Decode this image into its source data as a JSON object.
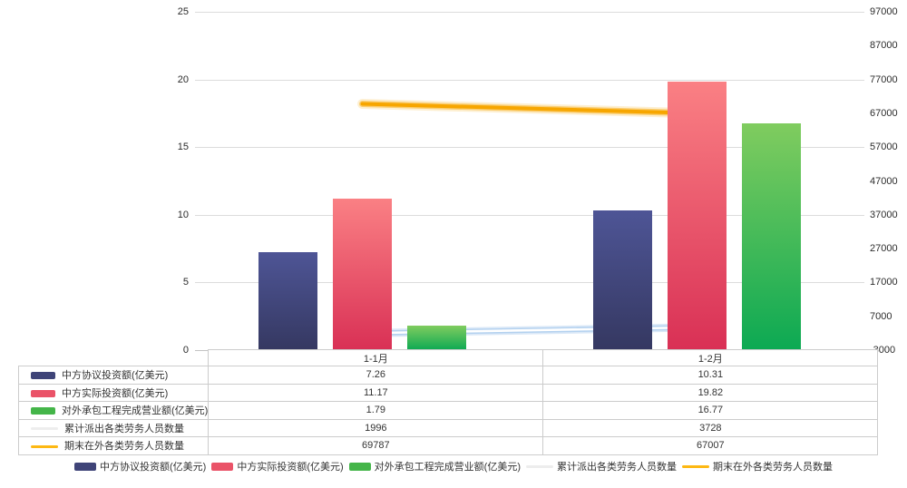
{
  "chart_data": {
    "type": "combo-bar-line",
    "title": "",
    "categories": [
      "1-1月",
      "1-2月"
    ],
    "series": [
      {
        "name": "中方协议投资额(亿美元)",
        "mark": "bar",
        "axis": "left",
        "values": [
          7.26,
          10.31
        ],
        "display": [
          "7.26",
          "10.31"
        ],
        "color_top": "#4e5596",
        "color_bottom": "#353861",
        "swatch": "#3f4478"
      },
      {
        "name": "中方实际投资额(亿美元)",
        "mark": "bar",
        "axis": "left",
        "values": [
          11.17,
          19.82
        ],
        "display": [
          "11.17",
          "19.82"
        ],
        "color_top": "#fa8084",
        "color_bottom": "#d93055",
        "swatch": "#ea5368"
      },
      {
        "name": "对外承包工程完成营业额(亿美元)",
        "mark": "bar",
        "axis": "left",
        "values": [
          1.79,
          16.77
        ],
        "display": [
          "1.79",
          "16.77"
        ],
        "color_top": "#80cc5f",
        "color_bottom": "#0ca953",
        "swatch": "#44b549"
      },
      {
        "name": "累计派出各类劳务人员数量",
        "mark": "line",
        "axis": "right",
        "values": [
          1996,
          3728
        ],
        "display": [
          "1996",
          "3728"
        ],
        "color": "#ffffff",
        "glow": "#94bee9",
        "swatch": "#ededed"
      },
      {
        "name": "期末在外各类劳务人员数量",
        "mark": "line",
        "axis": "right",
        "values": [
          69787,
          67007
        ],
        "display": [
          "69787",
          "67007"
        ],
        "color": "#f7a600",
        "glow": "#f6a600",
        "swatch": "#fdb813"
      }
    ],
    "left_axis": {
      "min": 0,
      "max": 25,
      "ticks": [
        0,
        5,
        10,
        15,
        20,
        25
      ]
    },
    "right_axis": {
      "min": -3000,
      "max": 97000,
      "ticks": [
        -3000,
        7000,
        17000,
        27000,
        37000,
        47000,
        57000,
        67000,
        77000,
        87000,
        97000
      ]
    },
    "grid": true,
    "legend_position": "bottom",
    "colors": {
      "gridline": "#dcdcdc",
      "axis_text": "#2b2b2b",
      "table_border": "#cccccc",
      "table_text": "#333333"
    }
  }
}
